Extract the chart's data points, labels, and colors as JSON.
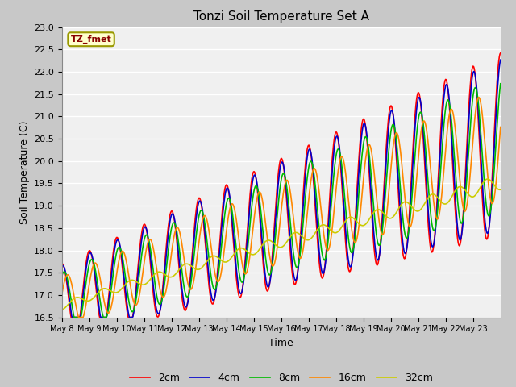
{
  "title": "Tonzi Soil Temperature Set A",
  "xlabel": "Time",
  "ylabel": "Soil Temperature (C)",
  "ylim": [
    16.5,
    23.0
  ],
  "fig_facecolor": "#c8c8c8",
  "ax_facecolor": "#f0f0f0",
  "annotation_text": "TZ_fmet",
  "annotation_facecolor": "#ffffcc",
  "annotation_edgecolor": "#999900",
  "annotation_textcolor": "#880000",
  "legend_labels": [
    "2cm",
    "4cm",
    "8cm",
    "16cm",
    "32cm"
  ],
  "legend_colors": [
    "#ff0000",
    "#0000cc",
    "#00bb00",
    "#ff8800",
    "#cccc00"
  ],
  "tick_dates": [
    "May 8",
    "May 9",
    "May 10",
    "May 11",
    "May 12",
    "May 13",
    "May 14",
    "May 15",
    "May 16",
    "May 17",
    "May 18",
    "May 19",
    "May 20",
    "May 21",
    "May 22",
    "May 23"
  ],
  "yticks": [
    16.5,
    17.0,
    17.5,
    18.0,
    18.5,
    19.0,
    19.5,
    20.0,
    20.5,
    21.0,
    21.5,
    22.0,
    22.5,
    23.0
  ]
}
